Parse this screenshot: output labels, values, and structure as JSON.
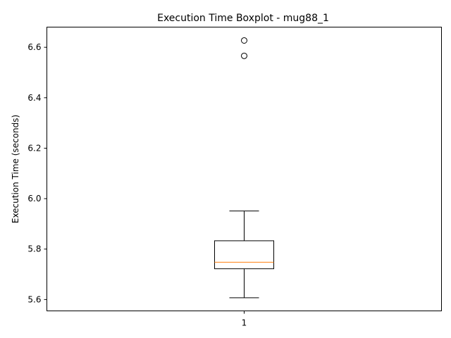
{
  "chart_data": {
    "type": "boxplot",
    "title": "Execution Time Boxplot - mug88_1",
    "xlabel": "",
    "ylabel": "Execution Time (seconds)",
    "categories": [
      "1"
    ],
    "ylim": [
      5.555,
      6.68
    ],
    "yticks": [
      5.6,
      5.8,
      6.0,
      6.2,
      6.4,
      6.6
    ],
    "ytick_labels": [
      "5.6",
      "5.8",
      "6.0",
      "6.2",
      "6.4",
      "6.6"
    ],
    "grid": false,
    "legend": "none",
    "boxes": [
      {
        "category": "1",
        "whisker_low": 5.607,
        "q1": 5.722,
        "median": 5.748,
        "q3": 5.833,
        "whisker_high": 5.951,
        "outliers": [
          6.566,
          6.627
        ]
      }
    ],
    "colors": {
      "box": "#000000",
      "median": "#ff7f0e",
      "whisker": "#000000",
      "outlier": "#000000"
    }
  }
}
